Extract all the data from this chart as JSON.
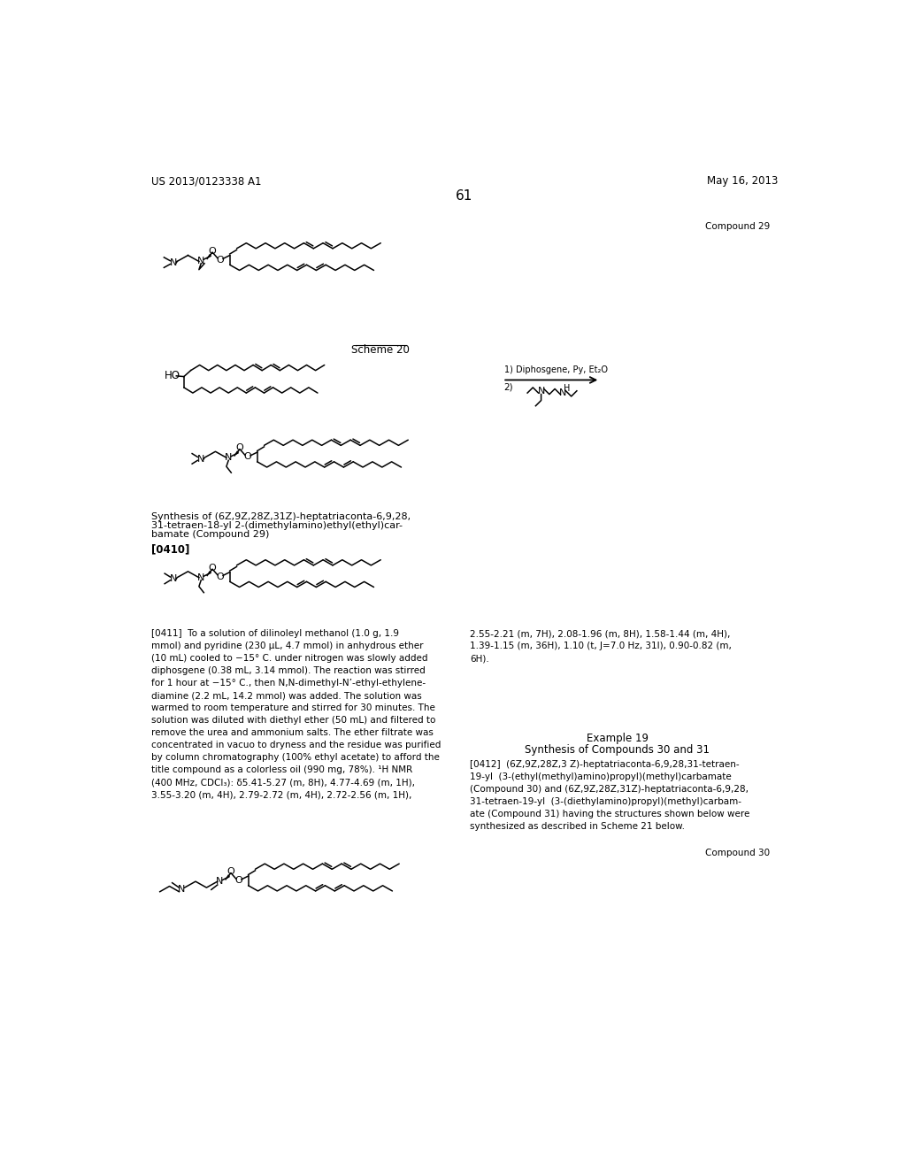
{
  "page_number": "61",
  "header_left": "US 2013/0123338 A1",
  "header_right": "May 16, 2013",
  "background_color": "#ffffff",
  "text_color": "#000000",
  "compound29_label": "Compound 29",
  "scheme20_label": "Scheme 20",
  "scheme20_reagents1": "1) Diphosgene, Py, Et₂O",
  "scheme20_reagents2": "2)",
  "compound30_label": "Compound 30",
  "synthesis_title": "Synthesis of (6Z,9Z,28Z,31Z)-heptatriaconta-6,9,28,",
  "synthesis_line2": "31-tetraen-18-yl 2-(dimethylamino)ethyl(ethyl)car-",
  "synthesis_line3": "bamate (Compound 29)",
  "para0410": "[0410]",
  "para0411_col1": "[0411]  To a solution of dilinoleyl methanol (1.0 g, 1.9\nmmol) and pyridine (230 μL, 4.7 mmol) in anhydrous ether\n(10 mL) cooled to −15° C. under nitrogen was slowly added\ndiphosgene (0.38 mL, 3.14 mmol). The reaction was stirred\nfor 1 hour at −15° C., then N,N-dimethyl-N’-ethyl-ethylene-\ndiamine (2.2 mL, 14.2 mmol) was added. The solution was\nwarmed to room temperature and stirred for 30 minutes. The\nsolution was diluted with diethyl ether (50 mL) and filtered to\nremove the urea and ammonium salts. The ether filtrate was\nconcentrated in vacuo to dryness and the residue was purified\nby column chromatography (100% ethyl acetate) to afford the\ntitle compound as a colorless oil (990 mg, 78%). ¹H NMR\n(400 MHz, CDCl₃): δ5.41-5.27 (m, 8H), 4.77-4.69 (m, 1H),\n3.55-3.20 (m, 4H), 2.79-2.72 (m, 4H), 2.72-2.56 (m, 1H),",
  "para0411_col2": "2.55-2.21 (m, 7H), 2.08-1.96 (m, 8H), 1.58-1.44 (m, 4H),\n1.39-1.15 (m, 36H), 1.10 (t, J=7.0 Hz, 31l), 0.90-0.82 (m,\n6H).",
  "example19_title": "Example 19",
  "example19_sub": "Synthesis of Compounds 30 and 31",
  "para0412": "[0412]  (6Z,9Z,28Z,3 Z)-heptatriaconta-6,9,28,31-tetraen-\n19-yl  (3-(ethyl(methyl)amino)propyl)(methyl)carbamate\n(Compound 30) and (6Z,9Z,28Z,31Z)-heptatriaconta-6,9,28,\n31-tetraen-19-yl  (3-(diethylamino)propyl)(methyl)carbam-\nate (Compound 31) having the structures shown below were\nsynthesized as described in Scheme 21 below."
}
